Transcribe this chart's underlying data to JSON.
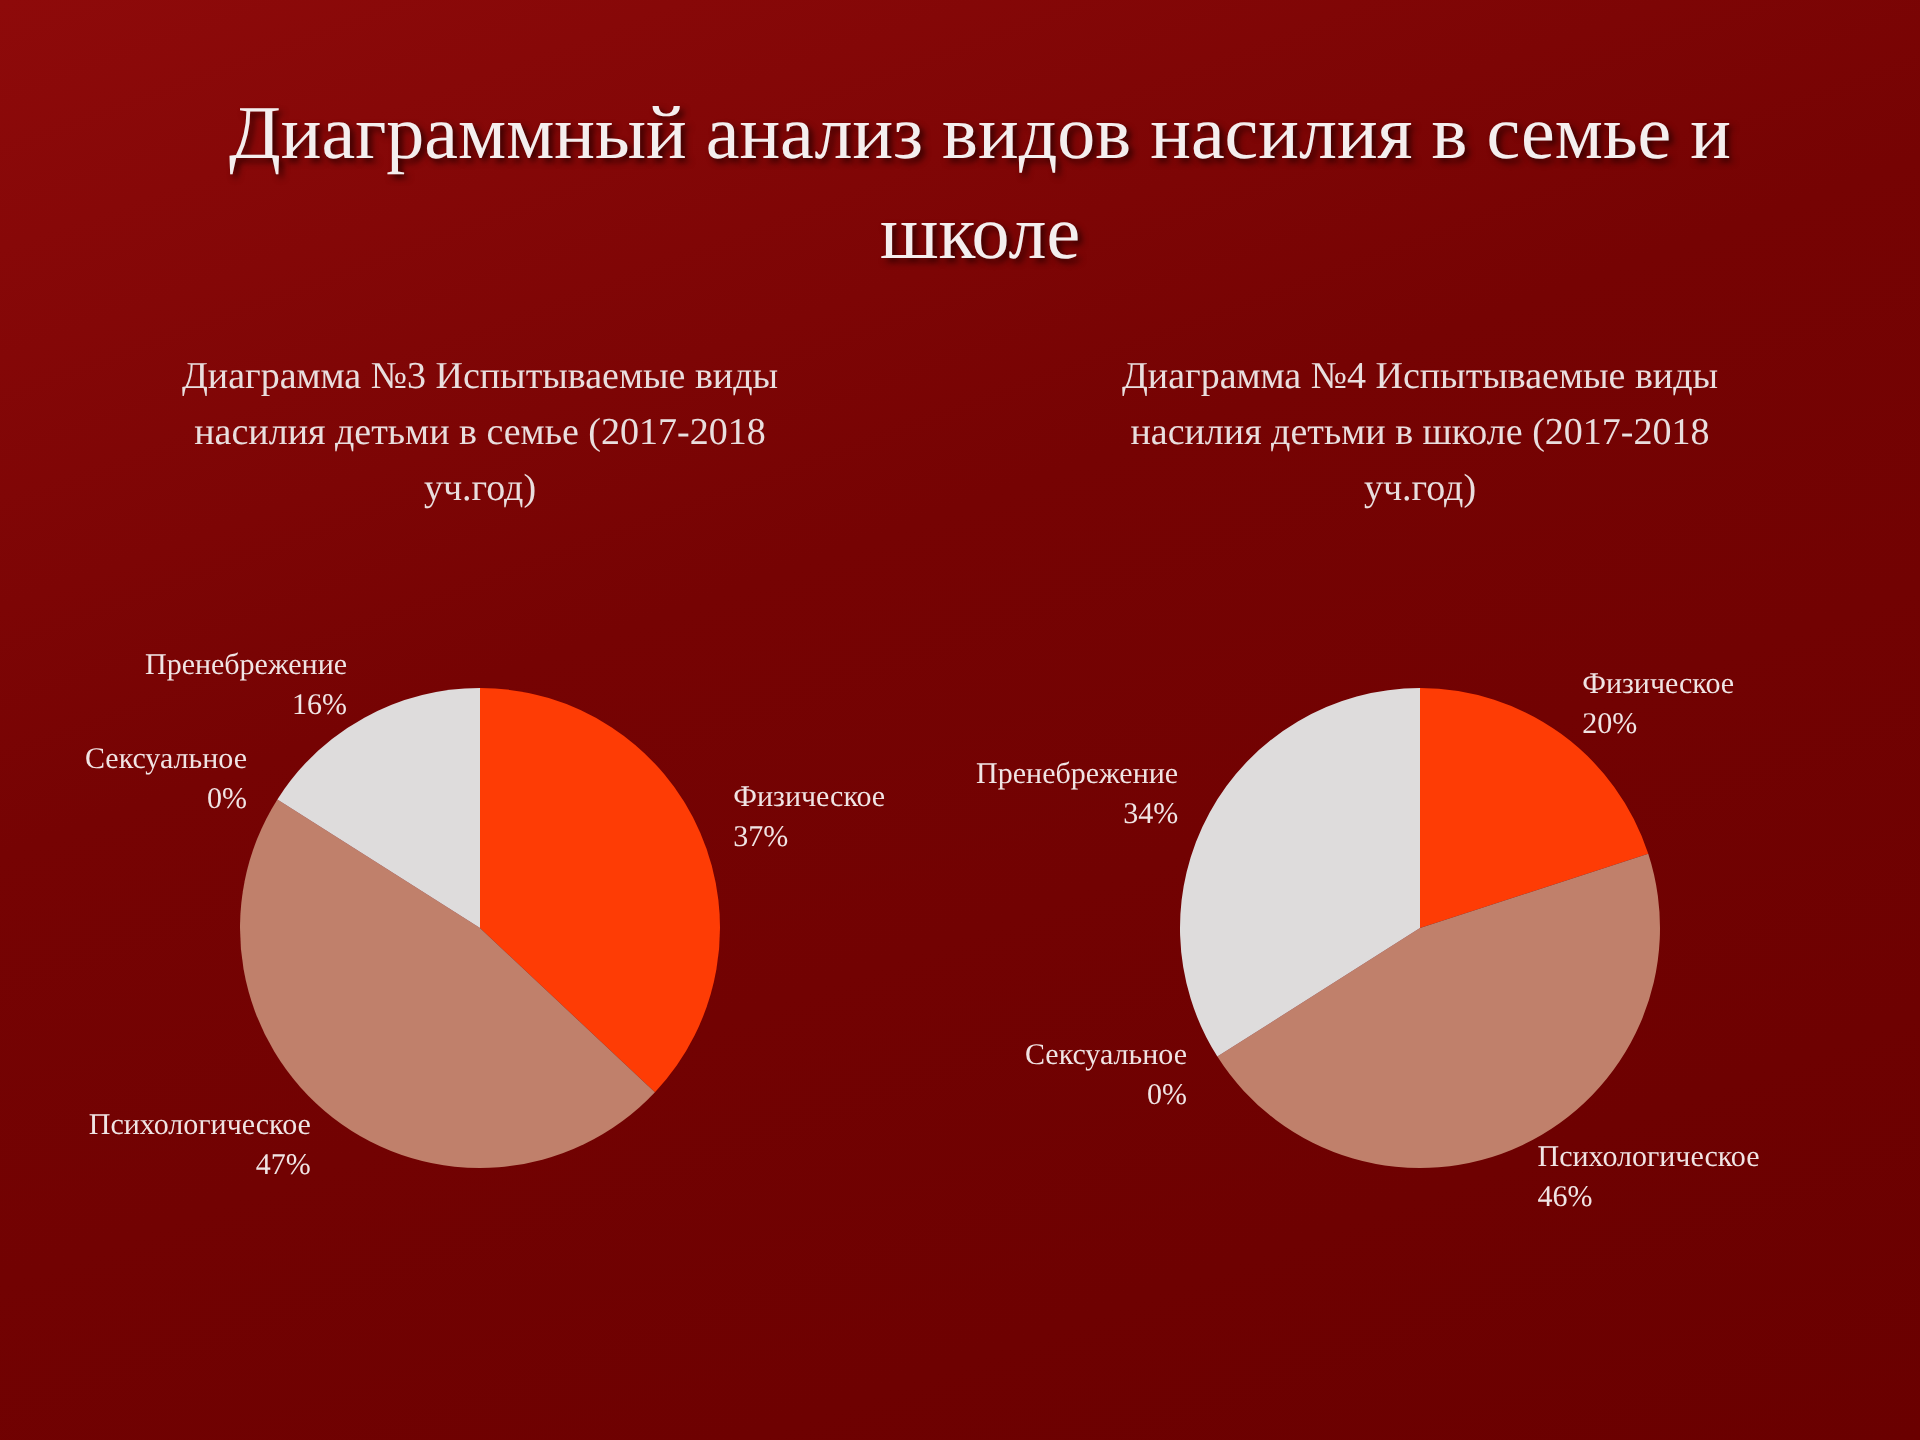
{
  "chart_data": [
    {
      "type": "pie",
      "title": "Диаграмма №3 Испытываемые виды насилия детьми в семье (2017-2018 уч.год)",
      "annotations": [
        "Диаграммный анализ видов насилия в семье и школе"
      ],
      "categories": [
        "Физическое",
        "Психологическое",
        "Сексуальное",
        "Пренебрежение"
      ],
      "values": [
        37,
        47,
        0,
        16
      ],
      "value_labels": [
        "37%",
        "47%",
        "0%",
        "16%"
      ],
      "colors": [
        "#fe3c05",
        "#c0806b",
        "#8a3a3a",
        "#dedcdc"
      ]
    },
    {
      "type": "pie",
      "title": "Диаграмма №4 Испытываемые виды насилия детьми в школе (2017-2018 уч.год)",
      "categories": [
        "Физическое",
        "Психологическое",
        "Сексуальное",
        "Пренебрежение"
      ],
      "values": [
        20,
        46,
        0,
        34
      ],
      "value_labels": [
        "20%",
        "46%",
        "0%",
        "34%"
      ],
      "colors": [
        "#fe3c05",
        "#c0806b",
        "#8a3a3a",
        "#dedcdc"
      ]
    }
  ]
}
